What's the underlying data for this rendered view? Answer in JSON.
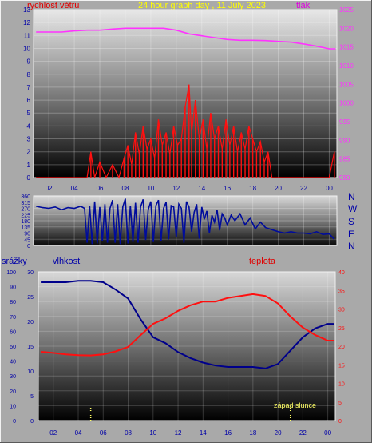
{
  "header": {
    "wind_label": "rychlost větru",
    "title": "24 hour graph day , 11 Júly 2023",
    "pressure_label": "tlak"
  },
  "colors": {
    "background": "#a9a9a9",
    "wind": "#ff1010",
    "wind_label": "#e00000",
    "pressure": "#ff33ff",
    "pressure_label": "#e000e0",
    "title": "#ffff00",
    "direction": "#000c9c",
    "humidity": "#00008b",
    "temperature": "#ff1010",
    "axis_text": "#0000a8",
    "sunset": "#ffff66"
  },
  "chart_data": [
    {
      "id": "wind-pressure",
      "type": "line",
      "title": "24 hour graph day , 11 Júly 2023",
      "x_ticks": [
        "02",
        "04",
        "06",
        "08",
        "10",
        "12",
        "14",
        "16",
        "18",
        "20",
        "22",
        "00"
      ],
      "xlim": [
        0.8,
        24.6
      ],
      "left_axis": {
        "label": "rychlost větru",
        "ylim": [
          0,
          13
        ],
        "ticks": [
          0,
          1,
          2,
          3,
          4,
          5,
          6,
          7,
          8,
          9,
          10,
          11,
          12,
          13
        ]
      },
      "right_axis": {
        "label": "tlak",
        "ylim": [
          980,
          1025
        ],
        "ticks": [
          980,
          985,
          990,
          995,
          1000,
          1005,
          1010,
          1015,
          1020,
          1025
        ]
      },
      "series": [
        {
          "name": "tlak",
          "axis": "right",
          "x": [
            1,
            2,
            3,
            4,
            5,
            6,
            7,
            8,
            9,
            10,
            11,
            12,
            13,
            14,
            15,
            16,
            17,
            18,
            19,
            20,
            21,
            22,
            23,
            24,
            24.5
          ],
          "values": [
            1019,
            1019,
            1019,
            1019.3,
            1019.5,
            1019.5,
            1019.8,
            1020,
            1020,
            1020,
            1020,
            1019.5,
            1018.5,
            1018,
            1017.5,
            1017,
            1016.8,
            1016.8,
            1016.7,
            1016.5,
            1016.3,
            1015.8,
            1015.2,
            1014.5,
            1014.5
          ]
        },
        {
          "name": "rychlost větru",
          "axis": "left",
          "x": [
            1,
            2,
            3,
            4,
            5,
            5.3,
            5.6,
            6,
            6.5,
            7,
            7.5,
            7.9,
            8.2,
            8.5,
            8.8,
            9.1,
            9.4,
            9.7,
            10,
            10.3,
            10.6,
            10.9,
            11.2,
            11.5,
            11.8,
            12.1,
            12.4,
            12.7,
            13,
            13.2,
            13.5,
            13.8,
            14.1,
            14.4,
            14.7,
            15,
            15.3,
            15.6,
            15.9,
            16.2,
            16.5,
            16.8,
            17.1,
            17.4,
            17.7,
            18,
            18.3,
            18.6,
            18.9,
            19.2,
            19.5,
            20,
            21,
            22,
            23,
            24,
            24.4
          ],
          "values": [
            0,
            0,
            0,
            0,
            0,
            2,
            0,
            1.2,
            0,
            1,
            0,
            1.5,
            2.5,
            1,
            3.5,
            1.8,
            4,
            2.2,
            3,
            1.5,
            4.5,
            2.5,
            3.5,
            1.8,
            4,
            2.5,
            3,
            5.5,
            7.2,
            3.5,
            6,
            3,
            4.5,
            2.2,
            5,
            3,
            4,
            2.2,
            4.5,
            2.5,
            4,
            2,
            3.5,
            2.2,
            4,
            3,
            2,
            2.8,
            1.2,
            2,
            0,
            0,
            0,
            0,
            0,
            0,
            2
          ]
        }
      ]
    },
    {
      "id": "wind-direction",
      "type": "line",
      "x_ticks": [
        "02",
        "04",
        "06",
        "08",
        "10",
        "12",
        "14",
        "16",
        "18",
        "20",
        "22",
        "00"
      ],
      "xlim": [
        0.8,
        24.6
      ],
      "left_axis": {
        "ylim": [
          0,
          360
        ],
        "ticks": [
          0,
          45,
          90,
          135,
          180,
          225,
          270,
          315,
          360
        ]
      },
      "right_labels": [
        "N",
        "W",
        "S",
        "E",
        "N"
      ],
      "series": [
        {
          "name": "direction",
          "x": [
            1,
            1.5,
            2,
            2.5,
            3,
            3.5,
            4,
            4.5,
            4.8,
            5,
            5.2,
            5.4,
            5.6,
            5.8,
            6,
            6.2,
            6.4,
            6.6,
            6.8,
            7,
            7.2,
            7.4,
            7.6,
            7.8,
            8,
            8.2,
            8.4,
            8.6,
            8.8,
            9,
            9.2,
            9.4,
            9.6,
            9.8,
            10,
            10.2,
            10.4,
            10.6,
            10.8,
            11,
            11.2,
            11.4,
            11.6,
            11.8,
            12,
            12.2,
            12.4,
            12.6,
            12.8,
            13,
            13.2,
            13.4,
            13.6,
            13.8,
            14,
            14.2,
            14.4,
            14.6,
            14.8,
            15,
            15.2,
            15.4,
            15.6,
            15.8,
            16,
            16.3,
            16.6,
            17,
            17.4,
            17.8,
            18.2,
            18.6,
            19,
            19.5,
            20,
            20.5,
            21,
            21.5,
            22,
            22.5,
            23,
            23.5,
            24,
            24.4
          ],
          "values": [
            285,
            275,
            270,
            280,
            260,
            275,
            270,
            285,
            270,
            20,
            290,
            10,
            320,
            15,
            280,
            30,
            300,
            20,
            270,
            330,
            20,
            300,
            10,
            280,
            340,
            15,
            290,
            25,
            310,
            20,
            280,
            335,
            40,
            260,
            320,
            25,
            290,
            330,
            30,
            270,
            315,
            45,
            290,
            280,
            60,
            300,
            270,
            20,
            320,
            280,
            100,
            240,
            300,
            50,
            280,
            190,
            250,
            90,
            220,
            170,
            260,
            110,
            230,
            200,
            150,
            220,
            180,
            230,
            150,
            200,
            120,
            170,
            130,
            115,
            100,
            90,
            100,
            90,
            90,
            85,
            100,
            80,
            85,
            45
          ]
        }
      ]
    },
    {
      "id": "humidity-temperature",
      "type": "line",
      "x_ticks": [
        "02",
        "04",
        "06",
        "08",
        "10",
        "12",
        "14",
        "16",
        "18",
        "20",
        "22",
        "00"
      ],
      "xlim": [
        0.8,
        24.6
      ],
      "precip_axis": {
        "label": "srážky",
        "ylim": [
          0,
          30
        ],
        "ticks": [
          0,
          5,
          10,
          15,
          20,
          25,
          30
        ]
      },
      "humidity_axis": {
        "label": "vlhkost",
        "ylim": [
          0,
          100
        ],
        "ticks": [
          0,
          10,
          20,
          30,
          40,
          50,
          60,
          70,
          80,
          90,
          100
        ]
      },
      "temperature_axis": {
        "label": "teplota",
        "ylim": [
          0,
          40
        ],
        "ticks": [
          0,
          5,
          10,
          15,
          20,
          25,
          30,
          35,
          40
        ]
      },
      "annotations": [
        {
          "text": "západ slunce",
          "x": 21
        }
      ],
      "sunrise_x": 5,
      "series": [
        {
          "name": "vlhkost",
          "axis": "humidity",
          "x": [
            1,
            2,
            3,
            4,
            5,
            6,
            7,
            8,
            9,
            10,
            11,
            12,
            13,
            14,
            15,
            16,
            17,
            18,
            19,
            20,
            21,
            22,
            23,
            24,
            24.5
          ],
          "values": [
            93,
            93,
            93,
            94,
            94,
            93,
            88,
            82,
            68,
            56,
            52,
            46,
            42,
            39,
            37,
            36,
            36,
            36,
            35,
            38,
            47,
            56,
            62,
            65,
            65
          ]
        },
        {
          "name": "teplota",
          "axis": "temperature",
          "x": [
            1,
            2,
            3,
            4,
            5,
            6,
            7,
            8,
            9,
            10,
            11,
            12,
            13,
            14,
            15,
            16,
            17,
            18,
            19,
            20,
            21,
            22,
            23,
            24,
            24.5
          ],
          "values": [
            18.5,
            18.2,
            17.8,
            17.6,
            17.5,
            17.8,
            18.6,
            19.8,
            23,
            26,
            27.5,
            29.5,
            31,
            32,
            32,
            33,
            33.5,
            34,
            33.5,
            31.5,
            28,
            25,
            23,
            21.5,
            21.5
          ]
        }
      ]
    }
  ]
}
